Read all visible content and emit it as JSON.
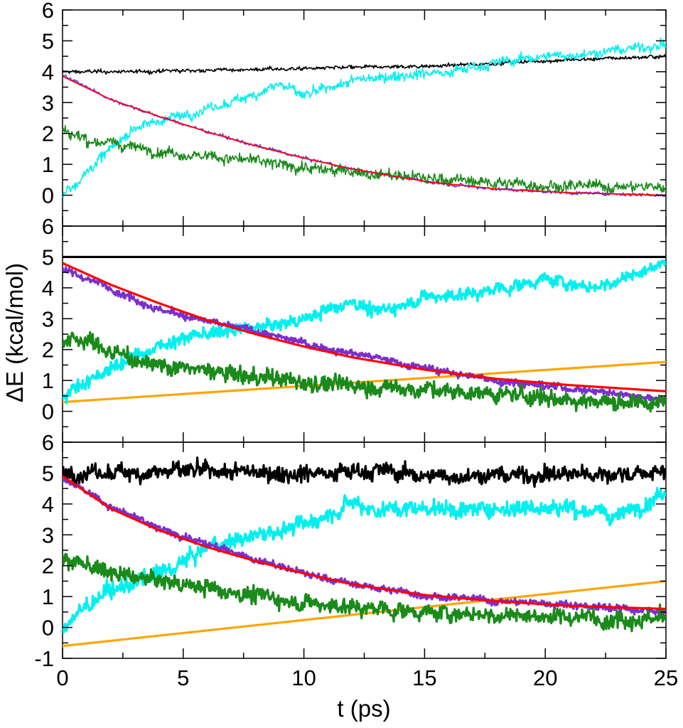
{
  "chart_data": {
    "type": "line",
    "xlabel": "t (ps)",
    "ylabel": "ΔE (kcal/mol)",
    "xlim": [
      0,
      25
    ],
    "xticks": [
      0,
      5,
      10,
      15,
      20,
      25
    ],
    "xtick_labels": [
      "0",
      "5",
      "10",
      "15",
      "20",
      "25"
    ],
    "grid": false,
    "legend": "none",
    "colors": {
      "black": "#000000",
      "cyan": "#00f0f0",
      "purple": "#7b2fd0",
      "green": "#1a8a1a",
      "red": "#ff0000",
      "orange": "#ffa500"
    },
    "panels": [
      {
        "id": "top",
        "ylim": [
          -1,
          6
        ],
        "yticks": [
          0,
          1,
          2,
          3,
          4,
          5,
          6
        ],
        "ytick_labels": [
          "0",
          "1",
          "2",
          "3",
          "4",
          "5",
          "6"
        ],
        "series": [
          {
            "color": "black",
            "noise": 0.08,
            "x": [
              0,
              3,
              6,
              10,
              13,
              16,
              20,
              25
            ],
            "y": [
              4.0,
              4.0,
              4.05,
              4.1,
              4.15,
              4.2,
              4.35,
              4.5
            ]
          },
          {
            "color": "cyan",
            "noise": 0.22,
            "x": [
              0,
              2,
              3,
              5,
              7,
              8,
              9,
              10,
              12,
              14,
              16,
              18,
              20,
              22,
              24,
              25
            ],
            "y": [
              0.0,
              1.5,
              2.2,
              2.6,
              3.0,
              3.3,
              3.6,
              3.2,
              3.7,
              3.9,
              4.0,
              4.3,
              4.5,
              4.6,
              4.8,
              4.9
            ]
          },
          {
            "color": "purple",
            "noise": 0.07,
            "x": [
              0,
              2,
              4,
              6,
              8,
              10,
              12,
              15,
              18,
              21,
              25
            ],
            "y": [
              3.9,
              3.1,
              2.55,
              2.05,
              1.6,
              1.2,
              0.85,
              0.45,
              0.2,
              0.08,
              0.0
            ]
          },
          {
            "color": "green",
            "noise": 0.25,
            "x": [
              0,
              1,
              3,
              5,
              8,
              10,
              12,
              15,
              18,
              21,
              25
            ],
            "y": [
              2.1,
              1.8,
              1.55,
              1.35,
              1.1,
              0.9,
              0.75,
              0.55,
              0.4,
              0.3,
              0.25
            ]
          },
          {
            "color": "red",
            "noise": 0,
            "x": [
              0,
              2,
              4,
              6,
              8,
              10,
              12,
              15,
              18,
              21,
              25
            ],
            "y": [
              3.85,
              3.1,
              2.55,
              2.05,
              1.6,
              1.2,
              0.85,
              0.45,
              0.2,
              0.08,
              0.0
            ]
          }
        ]
      },
      {
        "id": "middle",
        "ylim": [
          -1,
          6
        ],
        "yticks": [
          0,
          1,
          2,
          3,
          4,
          5,
          6
        ],
        "ytick_labels": [
          "0",
          "1",
          "2",
          "3",
          "4",
          "5",
          "6"
        ],
        "series": [
          {
            "color": "black",
            "noise": 0,
            "x": [
              0,
              25
            ],
            "y": [
              5.0,
              5.0
            ]
          },
          {
            "color": "orange",
            "noise": 0,
            "x": [
              0,
              25
            ],
            "y": [
              0.3,
              1.6
            ]
          },
          {
            "color": "cyan",
            "noise": 0.28,
            "x": [
              0,
              1,
              2,
              3,
              4,
              5,
              7,
              9,
              10,
              12,
              13,
              15,
              17,
              19,
              20,
              22,
              24,
              25
            ],
            "y": [
              0.5,
              1.0,
              1.4,
              1.8,
              2.1,
              2.4,
              2.6,
              2.8,
              3.0,
              3.6,
              3.2,
              3.7,
              3.8,
              4.1,
              4.3,
              4.0,
              4.5,
              4.9
            ]
          },
          {
            "color": "purple",
            "noise": 0.15,
            "x": [
              0,
              2,
              4,
              6,
              8,
              10,
              12,
              15,
              18,
              21,
              25
            ],
            "y": [
              4.6,
              4.0,
              3.3,
              2.9,
              2.6,
              2.2,
              1.9,
              1.4,
              1.0,
              0.75,
              0.4
            ]
          },
          {
            "color": "green",
            "noise": 0.35,
            "x": [
              0,
              1,
              2,
              4,
              6,
              8,
              10,
              12,
              15,
              18,
              21,
              25
            ],
            "y": [
              2.3,
              2.3,
              1.9,
              1.5,
              1.3,
              1.1,
              0.95,
              0.85,
              0.7,
              0.55,
              0.4,
              0.25
            ]
          },
          {
            "color": "red",
            "noise": 0,
            "x": [
              0,
              2,
              4,
              6,
              8,
              10,
              12,
              15,
              18,
              21,
              25
            ],
            "y": [
              4.8,
              4.1,
              3.5,
              2.95,
              2.5,
              2.1,
              1.75,
              1.35,
              1.05,
              0.85,
              0.65
            ]
          }
        ]
      },
      {
        "id": "bottom",
        "ylim": [
          -1,
          6
        ],
        "yticks": [
          -1,
          0,
          1,
          2,
          3,
          4,
          5,
          6
        ],
        "ytick_labels": [
          "-1",
          "0",
          "1",
          "2",
          "3",
          "4",
          "5",
          "6"
        ],
        "series": [
          {
            "color": "black",
            "noise": 0.35,
            "x": [
              0,
              5,
              10,
              13,
              15,
              20,
              25
            ],
            "y": [
              5.0,
              5.05,
              5.0,
              5.1,
              4.9,
              4.95,
              5.0
            ]
          },
          {
            "color": "orange",
            "noise": 0,
            "x": [
              0,
              25
            ],
            "y": [
              -0.6,
              1.5
            ]
          },
          {
            "color": "cyan",
            "noise": 0.35,
            "x": [
              0,
              1,
              2,
              4,
              5,
              6,
              8,
              10,
              12,
              13,
              15,
              17,
              19,
              21,
              23,
              25
            ],
            "y": [
              0.0,
              0.7,
              1.2,
              1.7,
              2.1,
              2.6,
              3.0,
              3.3,
              4.1,
              3.8,
              3.9,
              3.8,
              3.9,
              3.9,
              3.6,
              4.4
            ]
          },
          {
            "color": "purple",
            "noise": 0.15,
            "x": [
              0,
              2,
              4,
              6,
              8,
              10,
              12,
              15,
              18,
              21,
              25
            ],
            "y": [
              4.9,
              3.9,
              3.2,
              2.7,
              2.2,
              1.75,
              1.4,
              1.05,
              0.85,
              0.75,
              0.5
            ]
          },
          {
            "color": "green",
            "noise": 0.35,
            "x": [
              0,
              1,
              2,
              4,
              6,
              8,
              10,
              12,
              15,
              18,
              21,
              25
            ],
            "y": [
              2.2,
              2.0,
              1.75,
              1.5,
              1.3,
              1.05,
              0.8,
              0.65,
              0.5,
              0.4,
              0.35,
              0.3
            ]
          },
          {
            "color": "red",
            "noise": 0,
            "x": [
              0,
              2,
              4,
              6,
              8,
              10,
              12,
              15,
              18,
              21,
              25
            ],
            "y": [
              4.9,
              3.85,
              3.15,
              2.6,
              2.15,
              1.75,
              1.4,
              1.05,
              0.85,
              0.7,
              0.6
            ]
          }
        ]
      }
    ]
  }
}
